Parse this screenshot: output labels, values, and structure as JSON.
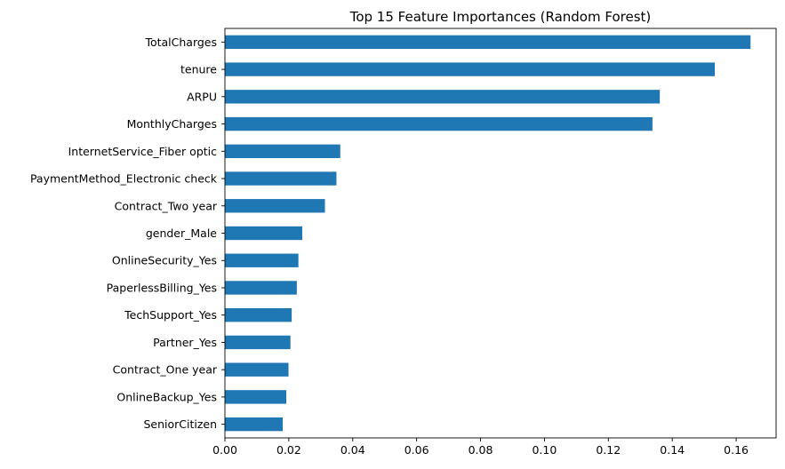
{
  "chart_data": {
    "type": "bar",
    "orientation": "horizontal",
    "title": "Top 15 Feature Importances (Random Forest)",
    "xlabel": "",
    "ylabel": "",
    "categories": [
      "TotalCharges",
      "tenure",
      "ARPU",
      "MonthlyCharges",
      "InternetService_Fiber optic",
      "PaymentMethod_Electronic check",
      "Contract_Two year",
      "gender_Male",
      "OnlineSecurity_Yes",
      "PaperlessBilling_Yes",
      "TechSupport_Yes",
      "Partner_Yes",
      "Contract_One year",
      "OnlineBackup_Yes",
      "SeniorCitizen"
    ],
    "values": [
      0.1645,
      0.1533,
      0.1361,
      0.1338,
      0.0361,
      0.0349,
      0.0313,
      0.0242,
      0.023,
      0.0225,
      0.0209,
      0.0205,
      0.0199,
      0.0192,
      0.0181
    ],
    "xlim": [
      0,
      0.1725
    ],
    "x_ticks": [
      "0.00",
      "0.02",
      "0.04",
      "0.06",
      "0.08",
      "0.10",
      "0.12",
      "0.14",
      "0.16"
    ],
    "grid": false,
    "legend": "none",
    "bar_color": "#1f77b4"
  }
}
